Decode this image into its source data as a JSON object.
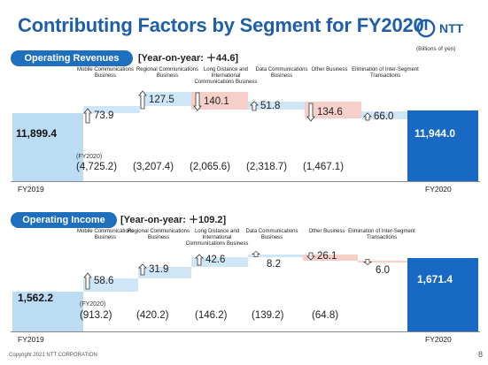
{
  "header": {
    "title": "Contributing Factors by Segment for FY2020",
    "logo_text": "NTT",
    "units": "(Billions of yen)"
  },
  "colors": {
    "brand": "#1f5fa8",
    "increase": "#cfe6f7",
    "decrease": "#f6cfc8",
    "total": "#1769c4"
  },
  "revenues": {
    "label": "Operating Revenues",
    "yoy": "[Year-on-year: ＋44.6]",
    "start_value": "11,899.4",
    "end_value": "11,944.0",
    "start_label": "FY2019",
    "end_label": "FY2020",
    "fy_note": "(FY2020)",
    "segments": [
      {
        "name": "Mobile Communications Business",
        "change": "73.9",
        "direction": "up",
        "fy2020": "(4,725.2)"
      },
      {
        "name": "Regional Communications Business",
        "change": "127.5",
        "direction": "up",
        "fy2020": "(3,207.4)"
      },
      {
        "name": "Long Distance and International Communications Business",
        "change": "140.1",
        "direction": "down",
        "fy2020": "(2,065.6)"
      },
      {
        "name": "Data Communications Business",
        "change": "51.8",
        "direction": "up",
        "fy2020": "(2,318.7)"
      },
      {
        "name": "Other Business",
        "change": "134.6",
        "direction": "down",
        "fy2020": "(1,467.1)"
      },
      {
        "name": "Elimination of Inter-Segment Transactions",
        "change": "66.0",
        "direction": "up",
        "fy2020": ""
      }
    ]
  },
  "income": {
    "label": "Operating Income",
    "yoy": "[Year-on-year: ＋109.2]",
    "start_value": "1,562.2",
    "end_value": "1,671.4",
    "start_label": "FY2019",
    "end_label": "FY2020",
    "fy_note": "(FY2020)",
    "segments": [
      {
        "name": "Mobile Communications Business",
        "change": "58.6",
        "direction": "up",
        "fy2020": "(913.2)"
      },
      {
        "name": "Regional Communications Business",
        "change": "31.9",
        "direction": "up",
        "fy2020": "(420.2)"
      },
      {
        "name": "Long Distance and International Communications Business",
        "change": "42.6",
        "direction": "up",
        "fy2020": "(146.2)"
      },
      {
        "name": "Data Communications Business",
        "change": "8.2",
        "direction": "up",
        "fy2020": "(139.2)"
      },
      {
        "name": "Other Business",
        "change": "26.1",
        "direction": "down",
        "fy2020": "(64.8)"
      },
      {
        "name": "Elimination of Inter-Segment Transactions",
        "change": "6.0",
        "direction": "down",
        "fy2020": ""
      }
    ]
  },
  "footer": {
    "copyright": "Copyright 2021 NTT CORPORATION",
    "page": "8"
  }
}
